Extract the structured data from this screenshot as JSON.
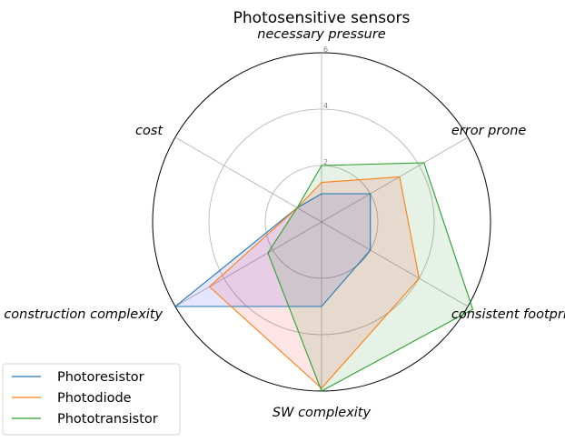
{
  "chart_data": {
    "type": "radar",
    "title": "Photosensitive sensors",
    "axes": [
      "necessary pressure",
      "error prone",
      "consistent footprint",
      "SW complexity",
      "construction complexity",
      "cost"
    ],
    "rlim": [
      0,
      6
    ],
    "rticks": [
      2,
      4,
      6
    ],
    "grid": true,
    "legend_position": "lower-left",
    "series": [
      {
        "name": "Photoresistor",
        "values": [
          1,
          2,
          2,
          3,
          6,
          1
        ],
        "color": "#1f77b4",
        "fill": "#0000ff"
      },
      {
        "name": "Photodiode",
        "values": [
          1.4,
          3.2,
          4,
          5.9,
          4.6,
          1
        ],
        "color": "#ff7f0e",
        "fill": "#ff0000"
      },
      {
        "name": "Phototransistor",
        "values": [
          2,
          4.2,
          6.2,
          6,
          2.2,
          1
        ],
        "color": "#2ca02c",
        "fill": "#008000"
      }
    ]
  }
}
